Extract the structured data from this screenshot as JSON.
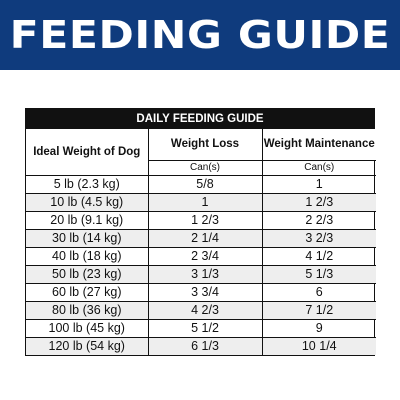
{
  "banner": {
    "title": "FEEDING GUIDE"
  },
  "guide": {
    "title": "DAILY FEEDING GUIDE",
    "columns": {
      "weight": "Ideal Weight of Dog",
      "loss": "Weight Loss",
      "maintenance": "Weight Maintenance"
    },
    "unit": "Can(s)",
    "rows": [
      {
        "weight": "5 lb (2.3 kg)",
        "loss": "5/8",
        "maintenance": "1"
      },
      {
        "weight": "10 lb (4.5 kg)",
        "loss": "1",
        "maintenance": "1 2/3"
      },
      {
        "weight": "20 lb (9.1 kg)",
        "loss": "1 2/3",
        "maintenance": "2 2/3"
      },
      {
        "weight": "30 lb (14 kg)",
        "loss": "2 1/4",
        "maintenance": "3 2/3"
      },
      {
        "weight": "40 lb (18 kg)",
        "loss": "2 3/4",
        "maintenance": "4 1/2"
      },
      {
        "weight": "50 lb (23 kg)",
        "loss": "3 1/3",
        "maintenance": "5 1/3"
      },
      {
        "weight": "60 lb (27 kg)",
        "loss": "3 3/4",
        "maintenance": "6"
      },
      {
        "weight": "80 lb (36 kg)",
        "loss": "4 2/3",
        "maintenance": "7 1/2"
      },
      {
        "weight": "100 lb (45 kg)",
        "loss": "5 1/2",
        "maintenance": "9"
      },
      {
        "weight": "120 lb (54 kg)",
        "loss": "6 1/3",
        "maintenance": "10 1/4"
      }
    ]
  },
  "colors": {
    "banner_bg": "#0f3b7d",
    "title_bar_bg": "#111111",
    "stripe_bg": "#eeeeee"
  }
}
